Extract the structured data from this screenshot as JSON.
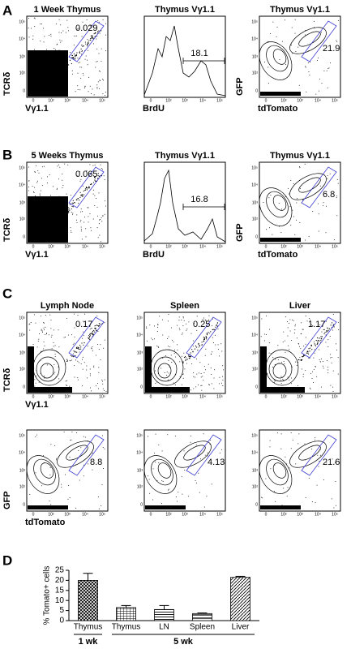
{
  "panels": [
    {
      "label": "A",
      "plots": [
        {
          "title": "1 Week Thymus",
          "x_label": "Vγ1.1",
          "y_label": "TCRδ",
          "gate": 0.029
        },
        {
          "title": "Thymus Vγ1.1",
          "x_label": "BrdU",
          "gate": 18.1
        },
        {
          "title": "Thymus Vγ1.1",
          "x_label": "tdTomato",
          "y_label": "GFP",
          "gate": 21.9
        }
      ]
    },
    {
      "label": "B",
      "plots": [
        {
          "title": "5 Weeks Thymus",
          "x_label": "Vγ1.1",
          "y_label": "TCRδ",
          "gate": 0.065
        },
        {
          "title": "Thymus Vγ1.1",
          "x_label": "BrdU",
          "gate": 16.8
        },
        {
          "title": "Thymus Vγ1.1",
          "x_label": "tdTomato",
          "y_label": "GFP",
          "gate": 6.8
        }
      ]
    },
    {
      "label": "C",
      "plots": [
        {
          "title": "Lymph Node",
          "x_label": "Vγ1.1",
          "y_label": "TCRδ",
          "gate": 0.17
        },
        {
          "title": "Spleen",
          "gate": 0.25
        },
        {
          "title": "Liver",
          "gate": 1.17
        },
        {
          "x_label": "tdTomato",
          "y_label": "GFP",
          "gate": 8.8
        },
        {
          "gate": 4.13
        },
        {
          "gate": 21.6
        }
      ]
    },
    {
      "label": "D"
    }
  ],
  "flow_ticks": [
    "0",
    "10²",
    "10³",
    "10⁴",
    "10⁵"
  ],
  "chart_data": {
    "type": "bar",
    "y_label": "% Tomato+ cells",
    "categories": [
      "Thymus",
      "Thymus",
      "LN",
      "Spleen",
      "Liver"
    ],
    "values": [
      20,
      6.5,
      5.5,
      3.5,
      21.5
    ],
    "errors": [
      3.5,
      1,
      2,
      0.3,
      0.5
    ],
    "groups": [
      "1 wk",
      "5 wk"
    ],
    "ylim": [
      0,
      25
    ],
    "yticks": [
      0,
      5,
      10,
      15,
      20,
      25
    ]
  }
}
